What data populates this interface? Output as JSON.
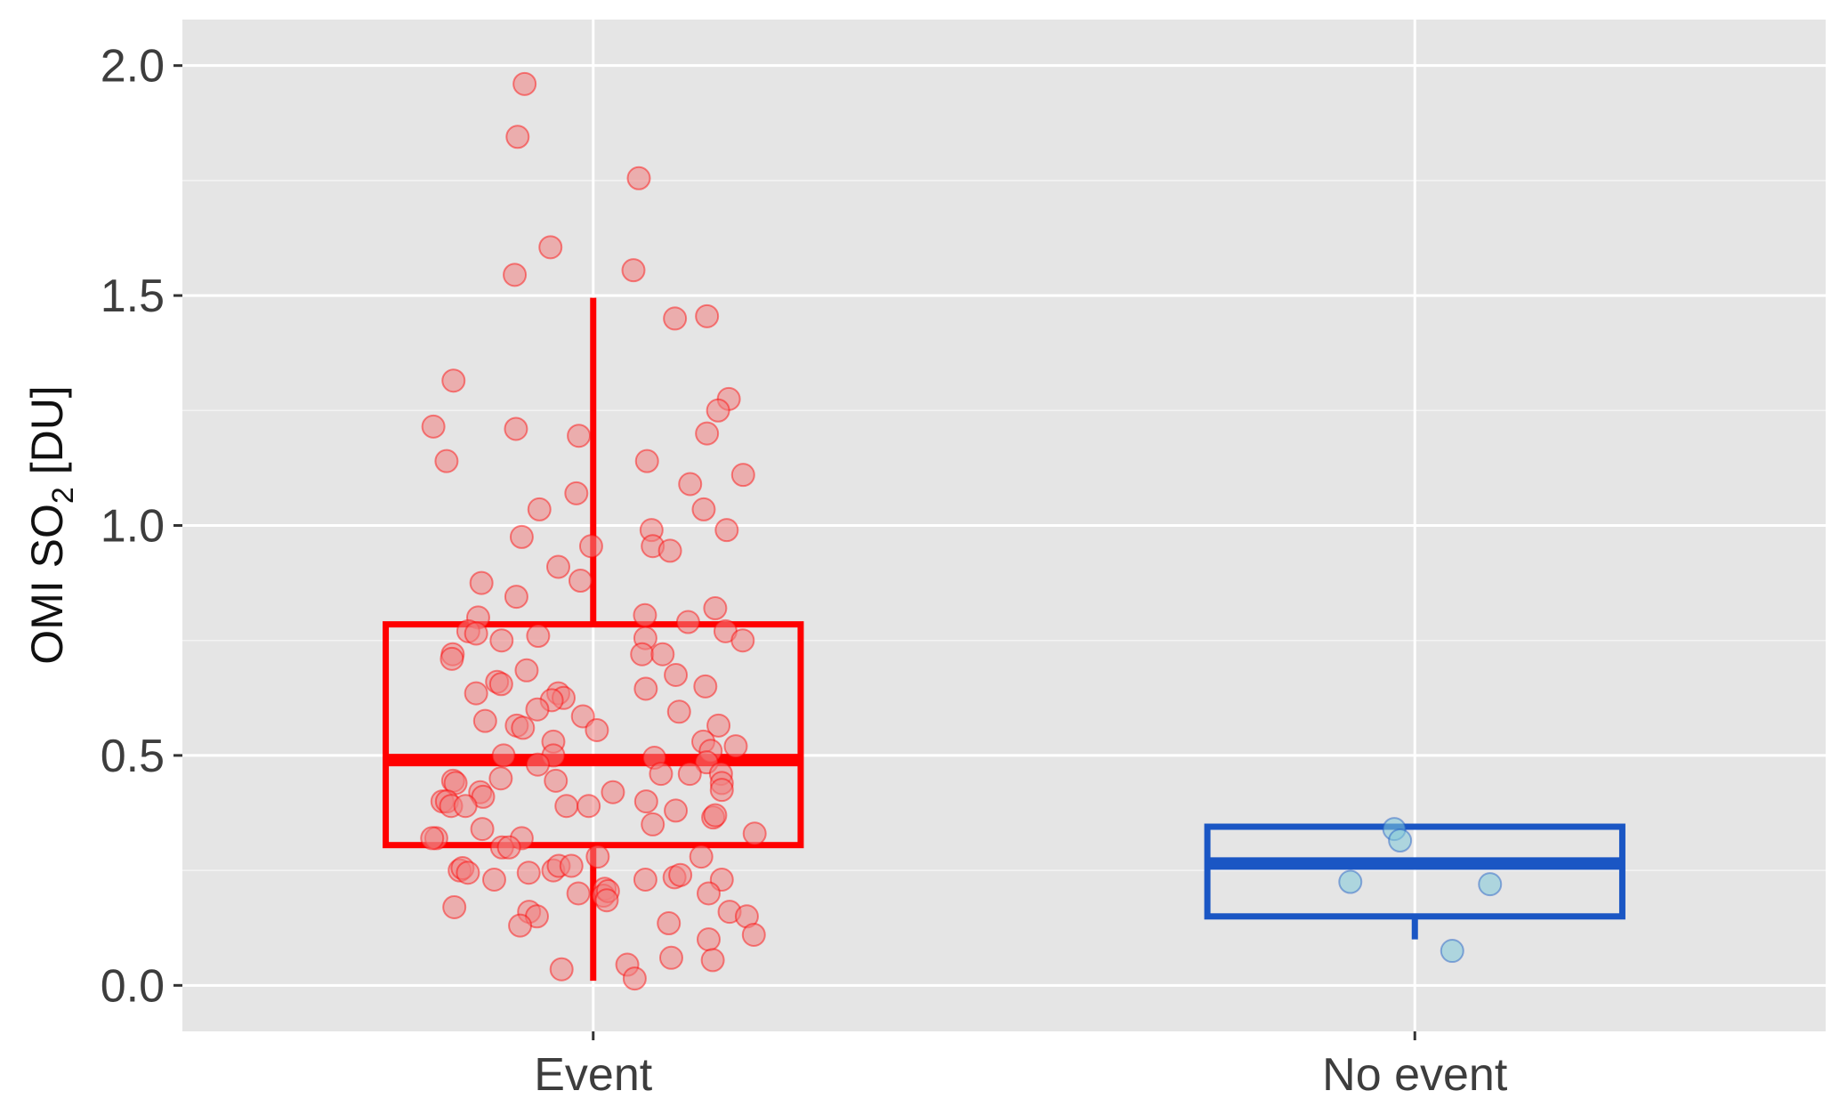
{
  "chart_data": {
    "type": "boxplot",
    "ylabel": {
      "prefix": "OMI SO",
      "subscript": "2",
      "suffix": " [DU]"
    },
    "ylim": [
      -0.1,
      2.1
    ],
    "y_ticks": [
      "0.0",
      "0.5",
      "1.0",
      "1.5",
      "2.0"
    ],
    "y_tick_values": [
      0.0,
      0.5,
      1.0,
      1.5,
      2.0
    ],
    "categories": [
      "Event",
      "No event"
    ],
    "grid": true,
    "background": "#e5e5e5",
    "series": [
      {
        "category": "Event",
        "color": "#ff0000",
        "point_fill": "#f08080",
        "box": {
          "whisker_low": 0.01,
          "q1": 0.305,
          "median": 0.49,
          "q3": 0.785,
          "whisker_high": 1.495
        },
        "points": [
          [
            -0.167,
            1.96
          ],
          [
            -0.184,
            1.845
          ],
          [
            -0.104,
            1.605
          ],
          [
            0.111,
            1.755
          ],
          [
            0.098,
            1.555
          ],
          [
            -0.191,
            1.545
          ],
          [
            0.199,
            1.45
          ],
          [
            0.277,
            1.455
          ],
          [
            -0.34,
            1.315
          ],
          [
            -0.389,
            1.215
          ],
          [
            -0.188,
            1.21
          ],
          [
            -0.035,
            1.195
          ],
          [
            0.33,
            1.275
          ],
          [
            0.304,
            1.25
          ],
          [
            0.277,
            1.2
          ],
          [
            -0.357,
            1.14
          ],
          [
            0.131,
            1.14
          ],
          [
            0.236,
            1.09
          ],
          [
            0.365,
            1.11
          ],
          [
            -0.041,
            1.07
          ],
          [
            -0.131,
            1.035
          ],
          [
            0.269,
            1.035
          ],
          [
            0.142,
            0.99
          ],
          [
            0.325,
            0.99
          ],
          [
            -0.174,
            0.975
          ],
          [
            -0.005,
            0.955
          ],
          [
            0.145,
            0.955
          ],
          [
            0.187,
            0.945
          ],
          [
            -0.085,
            0.91
          ],
          [
            -0.031,
            0.88
          ],
          [
            -0.272,
            0.875
          ],
          [
            -0.187,
            0.845
          ],
          [
            0.297,
            0.82
          ],
          [
            0.126,
            0.805
          ],
          [
            -0.28,
            0.8
          ],
          [
            0.231,
            0.79
          ],
          [
            -0.304,
            0.77
          ],
          [
            0.322,
            0.77
          ],
          [
            -0.285,
            0.765
          ],
          [
            0.364,
            0.75
          ],
          [
            -0.134,
            0.76
          ],
          [
            0.127,
            0.755
          ],
          [
            -0.223,
            0.75
          ],
          [
            -0.342,
            0.72
          ],
          [
            0.119,
            0.72
          ],
          [
            0.169,
            0.72
          ],
          [
            -0.344,
            0.71
          ],
          [
            -0.162,
            0.685
          ],
          [
            0.201,
            0.675
          ],
          [
            -0.234,
            0.66
          ],
          [
            -0.224,
            0.655
          ],
          [
            0.128,
            0.645
          ],
          [
            0.273,
            0.65
          ],
          [
            -0.285,
            0.635
          ],
          [
            -0.085,
            0.635
          ],
          [
            -0.072,
            0.625
          ],
          [
            -0.101,
            0.62
          ],
          [
            -0.136,
            0.6
          ],
          [
            0.209,
            0.595
          ],
          [
            -0.025,
            0.585
          ],
          [
            -0.263,
            0.575
          ],
          [
            -0.186,
            0.565
          ],
          [
            -0.171,
            0.56
          ],
          [
            0.305,
            0.565
          ],
          [
            0.009,
            0.555
          ],
          [
            -0.097,
            0.53
          ],
          [
            0.268,
            0.53
          ],
          [
            0.347,
            0.52
          ],
          [
            0.286,
            0.51
          ],
          [
            -0.218,
            0.5
          ],
          [
            0.149,
            0.495
          ],
          [
            -0.097,
            0.5
          ],
          [
            -0.135,
            0.48
          ],
          [
            0.276,
            0.485
          ],
          [
            0.311,
            0.46
          ],
          [
            0.165,
            0.46
          ],
          [
            0.235,
            0.46
          ],
          [
            -0.341,
            0.445
          ],
          [
            -0.225,
            0.45
          ],
          [
            -0.091,
            0.445
          ],
          [
            -0.335,
            0.44
          ],
          [
            0.313,
            0.44
          ],
          [
            0.313,
            0.425
          ],
          [
            -0.275,
            0.42
          ],
          [
            0.048,
            0.42
          ],
          [
            -0.268,
            0.41
          ],
          [
            -0.367,
            0.4
          ],
          [
            -0.356,
            0.4
          ],
          [
            0.129,
            0.4
          ],
          [
            -0.346,
            0.39
          ],
          [
            -0.311,
            0.39
          ],
          [
            -0.065,
            0.39
          ],
          [
            -0.011,
            0.39
          ],
          [
            0.201,
            0.38
          ],
          [
            0.292,
            0.365
          ],
          [
            0.297,
            0.37
          ],
          [
            0.145,
            0.35
          ],
          [
            -0.27,
            0.34
          ],
          [
            0.393,
            0.33
          ],
          [
            -0.382,
            0.32
          ],
          [
            -0.392,
            0.32
          ],
          [
            -0.174,
            0.32
          ],
          [
            -0.222,
            0.3
          ],
          [
            -0.205,
            0.3
          ],
          [
            0.263,
            0.28
          ],
          [
            0.011,
            0.28
          ],
          [
            -0.325,
            0.25
          ],
          [
            -0.318,
            0.255
          ],
          [
            -0.305,
            0.245
          ],
          [
            -0.157,
            0.245
          ],
          [
            -0.097,
            0.25
          ],
          [
            -0.084,
            0.26
          ],
          [
            -0.053,
            0.26
          ],
          [
            -0.241,
            0.23
          ],
          [
            0.127,
            0.23
          ],
          [
            0.198,
            0.235
          ],
          [
            0.212,
            0.24
          ],
          [
            0.313,
            0.23
          ],
          [
            0.028,
            0.21
          ],
          [
            -0.036,
            0.2
          ],
          [
            0.025,
            0.195
          ],
          [
            0.036,
            0.205
          ],
          [
            0.281,
            0.2
          ],
          [
            0.033,
            0.185
          ],
          [
            -0.338,
            0.17
          ],
          [
            -0.156,
            0.16
          ],
          [
            -0.137,
            0.15
          ],
          [
            0.332,
            0.16
          ],
          [
            0.374,
            0.15
          ],
          [
            -0.178,
            0.13
          ],
          [
            0.184,
            0.135
          ],
          [
            0.391,
            0.11
          ],
          [
            0.281,
            0.1
          ],
          [
            0.19,
            0.06
          ],
          [
            0.291,
            0.055
          ],
          [
            -0.077,
            0.035
          ],
          [
            0.083,
            0.045
          ],
          [
            0.101,
            0.015
          ]
        ]
      },
      {
        "category": "No event",
        "color": "#1a56c4",
        "point_fill": "#7fc8d8",
        "box": {
          "whisker_low": 0.1,
          "q1": 0.15,
          "median": 0.265,
          "q3": 0.345,
          "whisker_high": 0.345
        },
        "points": [
          [
            -0.157,
            0.225
          ],
          [
            -0.05,
            0.34
          ],
          [
            -0.036,
            0.315
          ],
          [
            0.091,
            0.075
          ],
          [
            0.183,
            0.22
          ]
        ]
      }
    ]
  }
}
